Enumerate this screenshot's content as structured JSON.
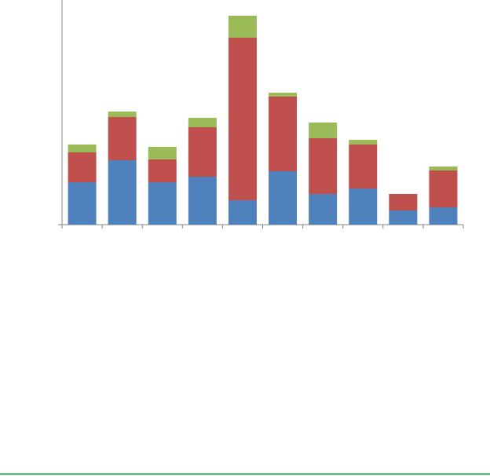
{
  "chart_data": {
    "type": "stacked-bar",
    "categories": [
      null,
      null,
      null,
      null,
      null,
      null,
      null,
      null,
      null,
      null
    ],
    "series": [
      {
        "color": "#4f81bd",
        "values": [
          54,
          82,
          54,
          61,
          31,
          68,
          39,
          46,
          18,
          22
        ]
      },
      {
        "color": "#c0504d",
        "values": [
          38,
          55,
          29,
          63,
          207,
          95,
          71,
          56,
          21,
          47
        ]
      },
      {
        "color": "#9bbb59",
        "values": [
          10,
          7,
          16,
          12,
          28,
          5,
          20,
          6,
          0,
          5
        ]
      }
    ],
    "ylim": [
      0,
      286
    ]
  }
}
